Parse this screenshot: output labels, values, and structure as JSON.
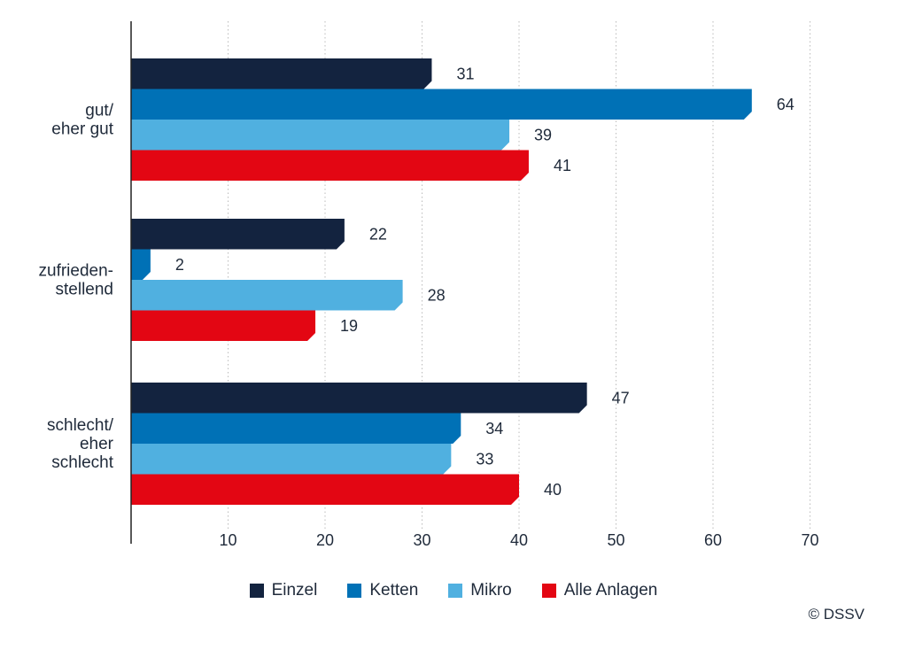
{
  "chart_data": {
    "type": "bar",
    "orientation": "horizontal",
    "categories": [
      [
        "gut/",
        "eher gut"
      ],
      [
        "zufrieden-",
        "stellend"
      ],
      [
        "schlecht/",
        "eher",
        "schlecht"
      ]
    ],
    "series": [
      {
        "name": "Einzel",
        "color": "#13233f",
        "values": [
          31,
          22,
          47
        ]
      },
      {
        "name": "Ketten",
        "color": "#0071b6",
        "values": [
          64,
          2,
          34
        ]
      },
      {
        "name": "Mikro",
        "color": "#50b0e0",
        "values": [
          39,
          28,
          33
        ]
      },
      {
        "name": "Alle Anlagen",
        "color": "#e30613",
        "values": [
          41,
          19,
          40
        ]
      }
    ],
    "xticks": [
      10,
      20,
      30,
      40,
      50,
      60,
      70
    ],
    "xlim": [
      0,
      72
    ],
    "grid": "vertical-dotted",
    "legend_position": "bottom"
  },
  "credit": "© DSSV"
}
